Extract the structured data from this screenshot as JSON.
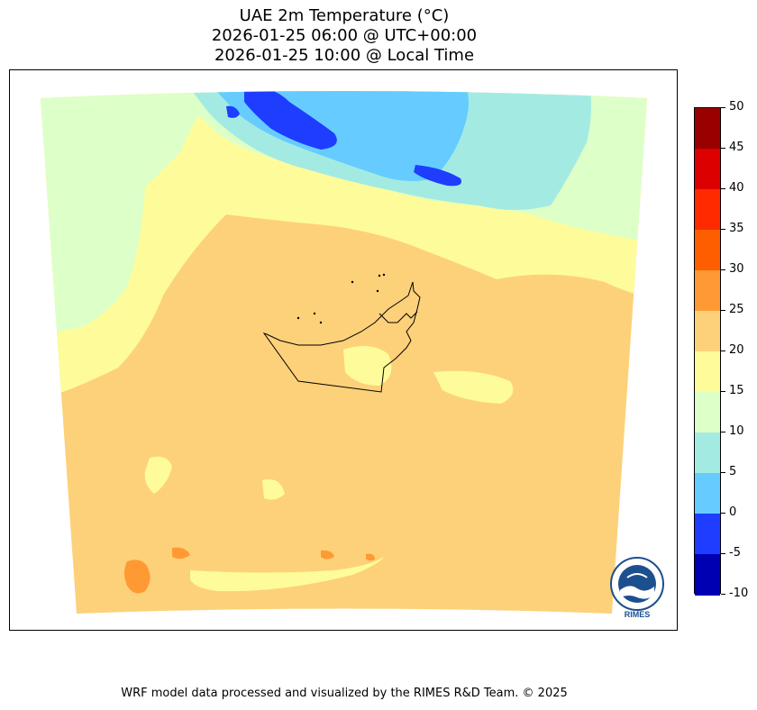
{
  "title": {
    "line1": "UAE 2m Temperature (°C)",
    "line2": "2026-01-25 06:00 @ UTC+00:00",
    "line3": "2026-01-25 10:00 @ Local Time"
  },
  "colorbar": {
    "levels": [
      "50",
      "45",
      "40",
      "35",
      "30",
      "25",
      "20",
      "15",
      "10",
      "5",
      "0",
      "-5",
      "-10"
    ],
    "colors": [
      "#990000",
      "#dd0000",
      "#ff2a00",
      "#ff5e00",
      "#ff9933",
      "#fdd17a",
      "#fefc9a",
      "#ddffc8",
      "#a3ebe2",
      "#66ccff",
      "#1f3dff",
      "#0000b3"
    ]
  },
  "palette": {
    "band_10_15": "#ddffc8",
    "band_5_10": "#a3ebe2",
    "band_0_5": "#66ccff",
    "band_m5_0": "#1f3dff",
    "band_15_20": "#fefc9a",
    "band_20_25": "#fdd17a",
    "band_25_30": "#ff9933"
  },
  "logo": {
    "text": "RIMES"
  },
  "footer": "WRF model data processed and visualized by the RIMES R&D Team. © 2025"
}
